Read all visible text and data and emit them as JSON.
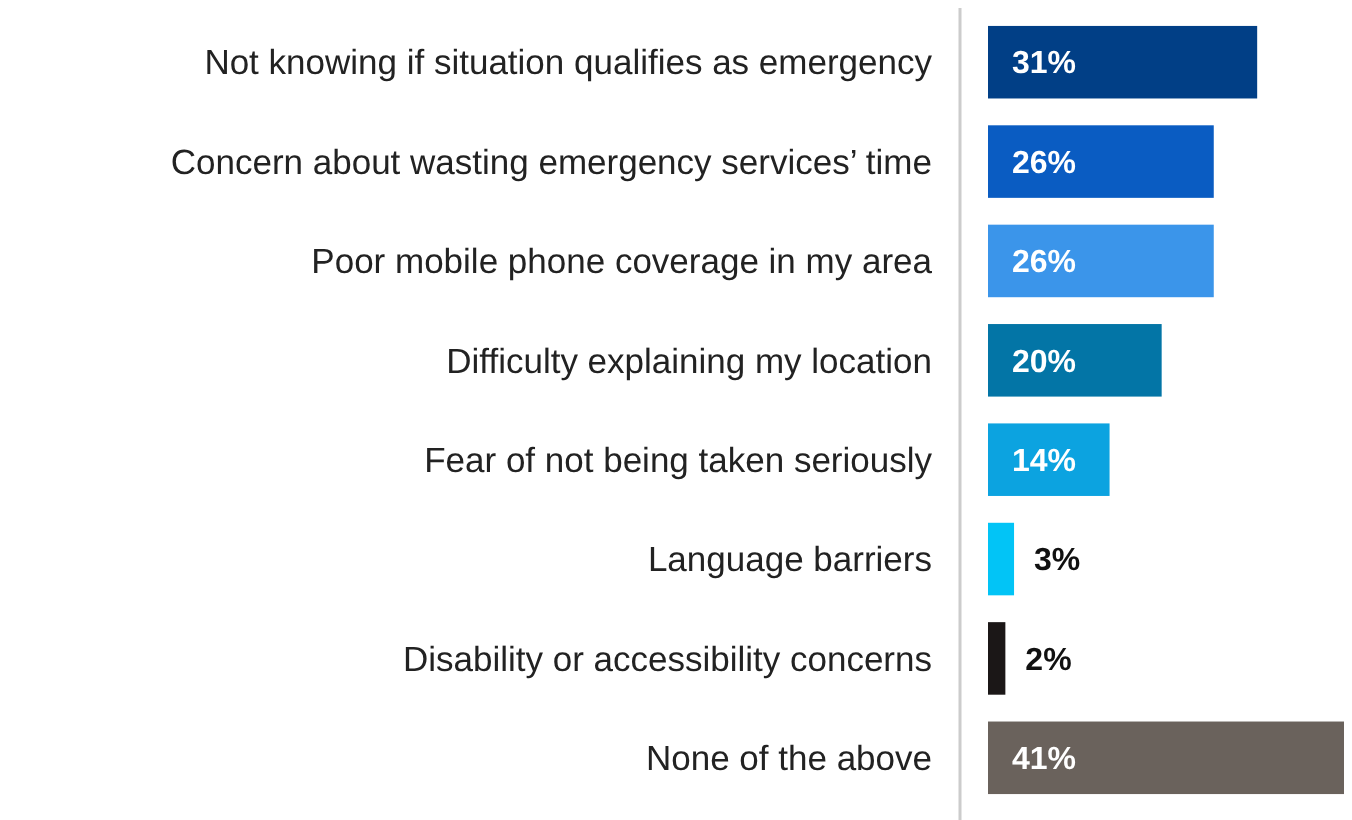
{
  "chart_data": {
    "type": "bar",
    "orientation": "horizontal",
    "categories": [
      "Not knowing if situation qualifies as emergency",
      "Concern about wasting emergency services’ time",
      "Poor mobile phone coverage in my area",
      "Difficulty explaining my location",
      "Fear of not being taken seriously",
      "Language barriers",
      "Disability or accessibility concerns",
      "None of the above"
    ],
    "values": [
      31,
      26,
      26,
      20,
      14,
      3,
      2,
      41
    ],
    "value_labels": [
      "31%",
      "26%",
      "26%",
      "20%",
      "14%",
      "3%",
      "2%",
      "41%"
    ],
    "colors": [
      "#013f86",
      "#0a5cc2",
      "#3b95ea",
      "#0375a6",
      "#0ca3e0",
      "#02c4f6",
      "#1b1717",
      "#6a625c"
    ],
    "relative": false
  }
}
